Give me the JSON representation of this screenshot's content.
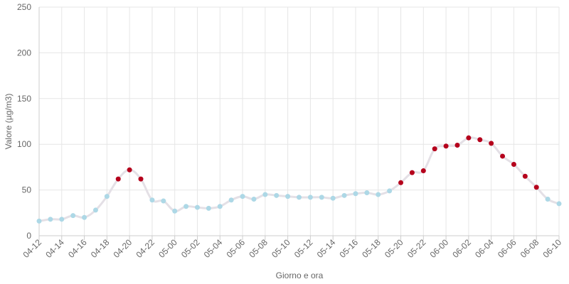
{
  "chart_data": {
    "type": "line",
    "xlabel": "Giorno e ora",
    "ylabel": "Valore (µg/m3)",
    "ylim": [
      0,
      250
    ],
    "yticks": [
      0,
      50,
      100,
      150,
      200,
      250
    ],
    "grid": true,
    "threshold": 50,
    "colors": {
      "below": "#add8e6",
      "above": "#b5001c",
      "line": "#e4e0e6"
    },
    "x": [
      "04-12",
      "04-13",
      "04-14",
      "04-15",
      "04-16",
      "04-17",
      "04-18",
      "04-19",
      "04-20",
      "04-21",
      "04-22",
      "04-23",
      "05-00",
      "05-01",
      "05-02",
      "05-03",
      "05-04",
      "05-05",
      "05-06",
      "05-07",
      "05-08",
      "05-09",
      "05-10",
      "05-11",
      "05-12",
      "05-13",
      "05-14",
      "05-15",
      "05-16",
      "05-17",
      "05-18",
      "05-19",
      "05-20",
      "05-21",
      "05-22",
      "05-23",
      "06-00",
      "06-01",
      "06-02",
      "06-03",
      "06-04",
      "06-05",
      "06-06",
      "06-07",
      "06-08",
      "06-09",
      "06-10"
    ],
    "xtick_labels": [
      "04-12",
      "04-14",
      "04-16",
      "04-18",
      "04-20",
      "04-22",
      "05-00",
      "05-02",
      "05-04",
      "05-06",
      "05-08",
      "05-10",
      "05-12",
      "05-14",
      "05-16",
      "05-18",
      "05-20",
      "05-22",
      "06-00",
      "06-02",
      "06-04",
      "06-06",
      "06-08",
      "06-10"
    ],
    "values": [
      16,
      18,
      18,
      22,
      20,
      28,
      43,
      62,
      72,
      62,
      39,
      38,
      27,
      32,
      31,
      30,
      32,
      39,
      43,
      40,
      45,
      44,
      43,
      42,
      42,
      42,
      41,
      44,
      46,
      47,
      45,
      49,
      58,
      69,
      71,
      95,
      98,
      99,
      107,
      105,
      101,
      87,
      78,
      65,
      53,
      40,
      35
    ]
  }
}
